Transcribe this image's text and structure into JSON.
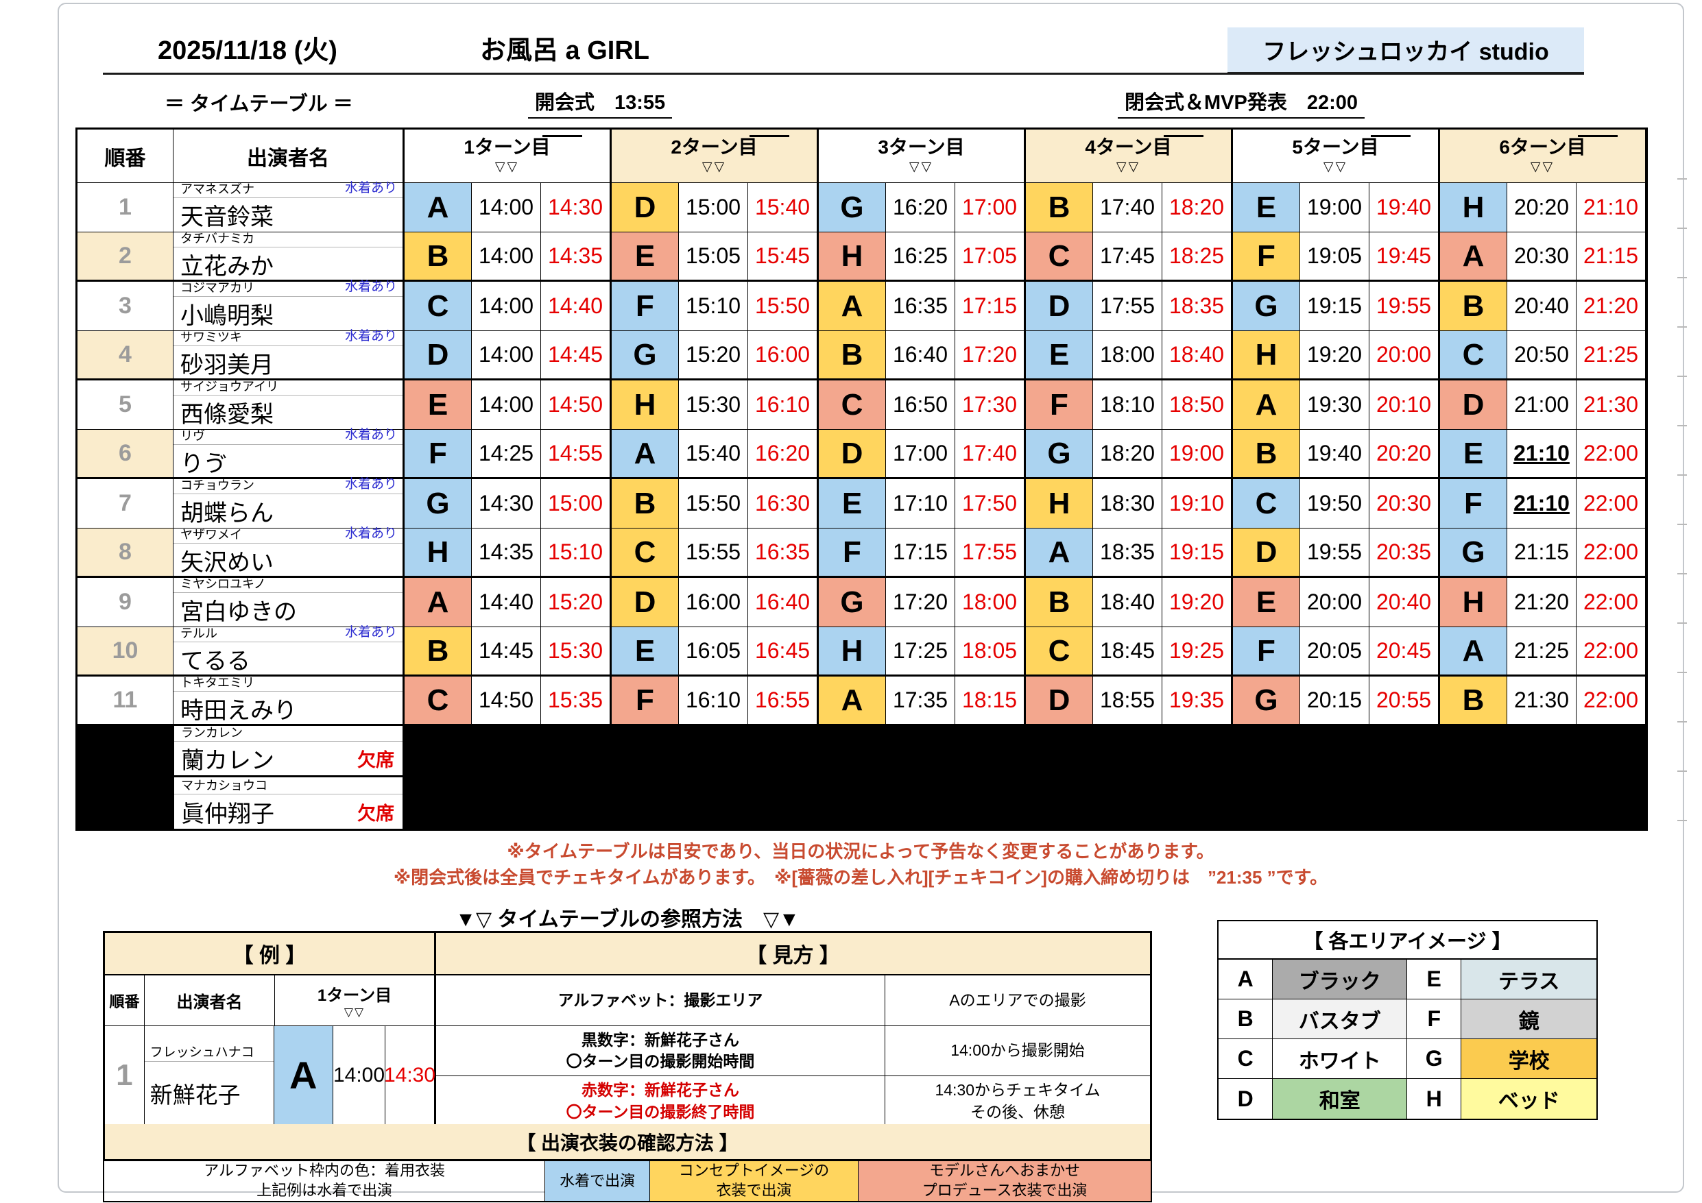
{
  "page": {
    "date": "2025/11/18 (火)",
    "title": "お風呂 a GIRL",
    "studio": "フレッシュロッカイ studio",
    "subtitle": "＝ タイムテーブル ＝",
    "opening": "開会式　13:55",
    "closing": "閉会式＆MVP発表　22:00"
  },
  "colors": {
    "swimsuit_blue": "#ABD3F0",
    "concept_yellow": "#FFD55E",
    "produce_salmon": "#F3A78E",
    "header_cream": "#FAECCC",
    "studio_bg": "#DCEAF8",
    "time_red": "#E60000",
    "note_red": "#C84A2F"
  },
  "table": {
    "col_order": "順番",
    "col_name": "出演者名",
    "turn_labels": [
      "1ターン目",
      "2ターン目",
      "3ターン目",
      "4ターン目",
      "5ターン目",
      "6ターン目"
    ],
    "turn_overline": [
      true,
      true,
      false,
      true,
      true,
      true
    ],
    "turn_marker": "▽▽",
    "swimsuit_note": "水着あり",
    "absent_label": "欠席",
    "rows": [
      {
        "no": "1",
        "furigana": "アマネスズナ",
        "name": "天音鈴菜",
        "swim": true,
        "turns": [
          {
            "a": "A",
            "c": "b",
            "s": "14:00",
            "e": "14:30"
          },
          {
            "a": "D",
            "c": "y",
            "s": "15:00",
            "e": "15:40"
          },
          {
            "a": "G",
            "c": "b",
            "s": "16:20",
            "e": "17:00"
          },
          {
            "a": "B",
            "c": "y",
            "s": "17:40",
            "e": "18:20"
          },
          {
            "a": "E",
            "c": "b",
            "s": "19:00",
            "e": "19:40"
          },
          {
            "a": "H",
            "c": "b",
            "s": "20:20",
            "e": "21:10"
          }
        ]
      },
      {
        "no": "2",
        "furigana": "タチバナミカ",
        "name": "立花みか",
        "swim": false,
        "turns": [
          {
            "a": "B",
            "c": "y",
            "s": "14:00",
            "e": "14:35"
          },
          {
            "a": "E",
            "c": "s",
            "s": "15:05",
            "e": "15:45"
          },
          {
            "a": "H",
            "c": "s",
            "s": "16:25",
            "e": "17:05"
          },
          {
            "a": "C",
            "c": "s",
            "s": "17:45",
            "e": "18:25"
          },
          {
            "a": "F",
            "c": "y",
            "s": "19:05",
            "e": "19:45"
          },
          {
            "a": "A",
            "c": "s",
            "s": "20:30",
            "e": "21:15"
          }
        ]
      },
      {
        "no": "3",
        "furigana": "コジマアカリ",
        "name": "小嶋明梨",
        "swim": true,
        "turns": [
          {
            "a": "C",
            "c": "b",
            "s": "14:00",
            "e": "14:40"
          },
          {
            "a": "F",
            "c": "b",
            "s": "15:10",
            "e": "15:50"
          },
          {
            "a": "A",
            "c": "y",
            "s": "16:35",
            "e": "17:15"
          },
          {
            "a": "D",
            "c": "b",
            "s": "17:55",
            "e": "18:35"
          },
          {
            "a": "G",
            "c": "b",
            "s": "19:15",
            "e": "19:55"
          },
          {
            "a": "B",
            "c": "y",
            "s": "20:40",
            "e": "21:20"
          }
        ]
      },
      {
        "no": "4",
        "furigana": "サワミツキ",
        "name": "砂羽美月",
        "swim": true,
        "turns": [
          {
            "a": "D",
            "c": "b",
            "s": "14:00",
            "e": "14:45"
          },
          {
            "a": "G",
            "c": "b",
            "s": "15:20",
            "e": "16:00"
          },
          {
            "a": "B",
            "c": "y",
            "s": "16:40",
            "e": "17:20"
          },
          {
            "a": "E",
            "c": "b",
            "s": "18:00",
            "e": "18:40"
          },
          {
            "a": "H",
            "c": "y",
            "s": "19:20",
            "e": "20:00"
          },
          {
            "a": "C",
            "c": "b",
            "s": "20:50",
            "e": "21:25"
          }
        ]
      },
      {
        "no": "5",
        "furigana": "サイジョウアイリ",
        "name": "西條愛梨",
        "swim": false,
        "turns": [
          {
            "a": "E",
            "c": "s",
            "s": "14:00",
            "e": "14:50"
          },
          {
            "a": "H",
            "c": "y",
            "s": "15:30",
            "e": "16:10"
          },
          {
            "a": "C",
            "c": "s",
            "s": "16:50",
            "e": "17:30"
          },
          {
            "a": "F",
            "c": "s",
            "s": "18:10",
            "e": "18:50"
          },
          {
            "a": "A",
            "c": "y",
            "s": "19:30",
            "e": "20:10"
          },
          {
            "a": "D",
            "c": "s",
            "s": "21:00",
            "e": "21:30"
          }
        ]
      },
      {
        "no": "6",
        "furigana": "リヴ",
        "name": "りゔ",
        "swim": true,
        "turns": [
          {
            "a": "F",
            "c": "b",
            "s": "14:25",
            "e": "14:55"
          },
          {
            "a": "A",
            "c": "b",
            "s": "15:40",
            "e": "16:20"
          },
          {
            "a": "D",
            "c": "y",
            "s": "17:00",
            "e": "17:40"
          },
          {
            "a": "G",
            "c": "b",
            "s": "18:20",
            "e": "19:00"
          },
          {
            "a": "B",
            "c": "y",
            "s": "19:40",
            "e": "20:20"
          },
          {
            "a": "E",
            "c": "b",
            "s": "21:10",
            "e": "22:00",
            "u": true
          }
        ]
      },
      {
        "no": "7",
        "furigana": "コチョウラン",
        "name": "胡蝶らん",
        "swim": true,
        "turns": [
          {
            "a": "G",
            "c": "b",
            "s": "14:30",
            "e": "15:00"
          },
          {
            "a": "B",
            "c": "y",
            "s": "15:50",
            "e": "16:30"
          },
          {
            "a": "E",
            "c": "b",
            "s": "17:10",
            "e": "17:50"
          },
          {
            "a": "H",
            "c": "y",
            "s": "18:30",
            "e": "19:10"
          },
          {
            "a": "C",
            "c": "b",
            "s": "19:50",
            "e": "20:30"
          },
          {
            "a": "F",
            "c": "b",
            "s": "21:10",
            "e": "22:00",
            "u": true
          }
        ]
      },
      {
        "no": "8",
        "furigana": "ヤザワメイ",
        "name": "矢沢めい",
        "swim": true,
        "turns": [
          {
            "a": "H",
            "c": "b",
            "s": "14:35",
            "e": "15:10"
          },
          {
            "a": "C",
            "c": "y",
            "s": "15:55",
            "e": "16:35"
          },
          {
            "a": "F",
            "c": "b",
            "s": "17:15",
            "e": "17:55"
          },
          {
            "a": "A",
            "c": "b",
            "s": "18:35",
            "e": "19:15"
          },
          {
            "a": "D",
            "c": "y",
            "s": "19:55",
            "e": "20:35"
          },
          {
            "a": "G",
            "c": "b",
            "s": "21:15",
            "e": "22:00"
          }
        ]
      },
      {
        "no": "9",
        "furigana": "ミヤシロユキノ",
        "name": "宮白ゆきの",
        "swim": false,
        "turns": [
          {
            "a": "A",
            "c": "s",
            "s": "14:40",
            "e": "15:20"
          },
          {
            "a": "D",
            "c": "y",
            "s": "16:00",
            "e": "16:40"
          },
          {
            "a": "G",
            "c": "s",
            "s": "17:20",
            "e": "18:00"
          },
          {
            "a": "B",
            "c": "y",
            "s": "18:40",
            "e": "19:20"
          },
          {
            "a": "E",
            "c": "s",
            "s": "20:00",
            "e": "20:40"
          },
          {
            "a": "H",
            "c": "s",
            "s": "21:20",
            "e": "22:00"
          }
        ]
      },
      {
        "no": "10",
        "furigana": "テルル",
        "name": "てるる",
        "swim": true,
        "turns": [
          {
            "a": "B",
            "c": "y",
            "s": "14:45",
            "e": "15:30"
          },
          {
            "a": "E",
            "c": "b",
            "s": "16:05",
            "e": "16:45"
          },
          {
            "a": "H",
            "c": "b",
            "s": "17:25",
            "e": "18:05"
          },
          {
            "a": "C",
            "c": "y",
            "s": "18:45",
            "e": "19:25"
          },
          {
            "a": "F",
            "c": "b",
            "s": "20:05",
            "e": "20:45"
          },
          {
            "a": "A",
            "c": "b",
            "s": "21:25",
            "e": "22:00"
          }
        ]
      },
      {
        "no": "11",
        "furigana": "トキタエミリ",
        "name": "時田えみり",
        "swim": false,
        "turns": [
          {
            "a": "C",
            "c": "s",
            "s": "14:50",
            "e": "15:35"
          },
          {
            "a": "F",
            "c": "s",
            "s": "16:10",
            "e": "16:55"
          },
          {
            "a": "A",
            "c": "y",
            "s": "17:35",
            "e": "18:15"
          },
          {
            "a": "D",
            "c": "s",
            "s": "18:55",
            "e": "19:35"
          },
          {
            "a": "G",
            "c": "s",
            "s": "20:15",
            "e": "20:55"
          },
          {
            "a": "B",
            "c": "y",
            "s": "21:30",
            "e": "22:00"
          }
        ]
      }
    ],
    "absent_rows": [
      {
        "furigana": "ランカレン",
        "name": "蘭カレン"
      },
      {
        "furigana": "マナカショウコ",
        "name": "眞仲翔子"
      }
    ]
  },
  "notes": [
    "※タイムテーブルは目安であり、当日の状況によって予告なく変更することがあります。",
    "※閉会式後は全員でチェキタイムがあります。　※[薔薇の差し入れ][チェキコイン]の購入締め切りは　”21:35 ”です。"
  ],
  "guide": {
    "heading": "▼▽ タイムテーブルの参照方法　▽▼",
    "example": {
      "title": "【 例 】",
      "col_order": "順番",
      "col_name": "出演者名",
      "turn_label": "1ターン目",
      "turn_marker": "▽▽",
      "row": {
        "no": "1",
        "furigana": "フレッシュハナコ",
        "name": "新鮮花子",
        "area": "A",
        "start": "14:00",
        "end": "14:30"
      }
    },
    "howto": {
      "title": "【 見方 】",
      "rows": [
        {
          "left": "アルファベット：撮影エリア",
          "right": "Aのエリアでの撮影"
        },
        {
          "left": "黒数字：新鮮花子さん\n〇ターン目の撮影開始時間",
          "right": "14:00から撮影開始"
        },
        {
          "left": "赤数字：新鮮花子さん\n〇ターン目の撮影終了時間",
          "right": "14:30からチェキタイム\nその後、休憩"
        }
      ]
    },
    "costume": {
      "title": "【 出演衣装の確認方法 】",
      "desc": "アルファベット枠内の色：着用衣装\n上記例は水着で出演",
      "legend_blue": "水着で出演",
      "legend_yellow": "コンセプトイメージの\n衣装で出演",
      "legend_salmon": "モデルさんへおまかせ\nプロデュース衣装で出演"
    }
  },
  "areas": {
    "title": "【 各エリアイメージ 】",
    "items": [
      {
        "letter": "A",
        "name": "ブラック",
        "bg": "#ABABAB"
      },
      {
        "letter": "E",
        "name": "テラス",
        "bg": "#D9E6EA"
      },
      {
        "letter": "B",
        "name": "バスタブ",
        "bg": "#F2F2F2"
      },
      {
        "letter": "F",
        "name": "鏡",
        "bg": "#D2D2D2"
      },
      {
        "letter": "C",
        "name": "ホワイト",
        "bg": "#FFFFFF"
      },
      {
        "letter": "G",
        "name": "学校",
        "bg": "#FBCB4F"
      },
      {
        "letter": "D",
        "name": "和室",
        "bg": "#ACD6A2"
      },
      {
        "letter": "H",
        "name": "ベッド",
        "bg": "#FFFA9E"
      }
    ]
  }
}
